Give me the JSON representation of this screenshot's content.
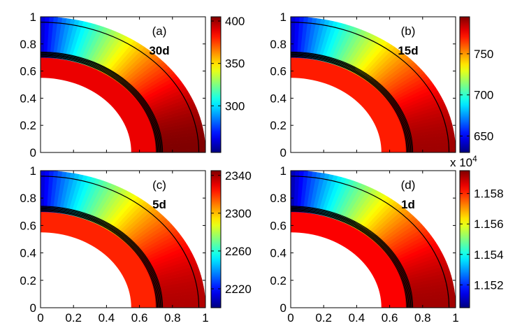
{
  "chart_data": [
    {
      "type": "heatmap",
      "panel_label": "(a)",
      "period": "30d",
      "x_ticks": [
        "0",
        "0.2",
        "0.4",
        "0.6",
        "0.8",
        "1"
      ],
      "y_ticks": [
        "0",
        "0.2",
        "0.4",
        "0.6",
        "0.8",
        "1"
      ],
      "show_x_ticks": false,
      "show_y_ticks": true,
      "xlim": [
        0,
        1
      ],
      "ylim": [
        0,
        1
      ],
      "colorbar": {
        "min": 245,
        "max": 405,
        "ticks": [
          "300",
          "350",
          "400"
        ],
        "multiplier": ""
      },
      "field": {
        "inner_radius": 0.55,
        "core_radius": 0.7,
        "outer_radius": 1.0,
        "pole_value": 255,
        "core_value": 388,
        "equator_value": 405,
        "contour_levels": 26
      }
    },
    {
      "type": "heatmap",
      "panel_label": "(b)",
      "period": "15d",
      "x_ticks": [
        "0",
        "0.2",
        "0.4",
        "0.6",
        "0.8",
        "1"
      ],
      "y_ticks": [
        "0",
        "0.2",
        "0.4",
        "0.6",
        "0.8",
        "1"
      ],
      "show_x_ticks": false,
      "show_y_ticks": true,
      "xlim": [
        0,
        1
      ],
      "ylim": [
        0,
        1
      ],
      "colorbar": {
        "min": 630,
        "max": 795,
        "ticks": [
          "650",
          "700",
          "750"
        ],
        "multiplier": ""
      },
      "field": {
        "inner_radius": 0.55,
        "core_radius": 0.7,
        "outer_radius": 1.0,
        "pole_value": 640,
        "core_value": 770,
        "equator_value": 790,
        "contour_levels": 26
      }
    },
    {
      "type": "heatmap",
      "panel_label": "(c)",
      "period": "5d",
      "x_ticks": [
        "0",
        "0.2",
        "0.4",
        "0.6",
        "0.8",
        "1"
      ],
      "y_ticks": [
        "0",
        "0.2",
        "0.4",
        "0.6",
        "0.8",
        "1"
      ],
      "show_x_ticks": true,
      "show_y_ticks": true,
      "xlim": [
        0,
        1
      ],
      "ylim": [
        0,
        1
      ],
      "colorbar": {
        "min": 2200,
        "max": 2345,
        "ticks": [
          "2220",
          "2260",
          "2300",
          "2340"
        ],
        "multiplier": ""
      },
      "field": {
        "inner_radius": 0.55,
        "core_radius": 0.7,
        "outer_radius": 1.0,
        "pole_value": 2210,
        "core_value": 2322,
        "equator_value": 2338,
        "contour_levels": 26
      }
    },
    {
      "type": "heatmap",
      "panel_label": "(d)",
      "period": "1d",
      "x_ticks": [
        "0",
        "0.2",
        "0.4",
        "0.6",
        "0.8",
        "1"
      ],
      "y_ticks": [
        "0",
        "0.2",
        "0.4",
        "0.6",
        "0.8",
        "1"
      ],
      "show_x_ticks": true,
      "show_y_ticks": true,
      "xlim": [
        0,
        1
      ],
      "ylim": [
        0,
        1
      ],
      "colorbar": {
        "min": 1.1505,
        "max": 1.1595,
        "ticks": [
          "1.152",
          "1.154",
          "1.156",
          "1.158"
        ],
        "multiplier": "x 10",
        "multiplier_exp": "4"
      },
      "field": {
        "inner_radius": 0.55,
        "core_radius": 0.7,
        "outer_radius": 1.0,
        "pole_value": 1.1508,
        "core_value": 1.1584,
        "equator_value": 1.1592,
        "contour_levels": 26
      }
    }
  ]
}
